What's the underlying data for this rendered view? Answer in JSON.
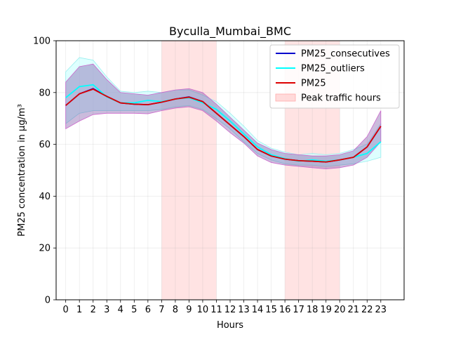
{
  "chart_data": {
    "type": "line",
    "title": "Byculla_Mumbai_BMC",
    "xlabel": "Hours",
    "ylabel": "PM25 concentration in µg/m³",
    "xlim": [
      -0.7,
      24.7
    ],
    "ylim": [
      0,
      100
    ],
    "xticks": [
      0,
      1,
      2,
      3,
      4,
      5,
      6,
      7,
      8,
      9,
      10,
      11,
      12,
      13,
      14,
      15,
      16,
      17,
      18,
      19,
      20,
      21,
      22,
      23
    ],
    "yticks": [
      0,
      20,
      40,
      60,
      80,
      100
    ],
    "grid": true,
    "legend_position": "top-right",
    "x": [
      0,
      1,
      2,
      3,
      4,
      5,
      6,
      7,
      8,
      9,
      10,
      11,
      12,
      13,
      14,
      15,
      16,
      17,
      18,
      19,
      20,
      21,
      22,
      23
    ],
    "series": [
      {
        "name": "PM25_consecutives",
        "color": "#0000cc",
        "values": [
          75,
          79.5,
          81.5,
          78.5,
          76,
          75.5,
          75.3,
          76.3,
          77.5,
          78.3,
          76.5,
          72,
          67.5,
          63,
          58,
          55.5,
          54.3,
          53.7,
          53.5,
          53.2,
          54,
          55,
          59,
          67
        ],
        "band_low": [
          66,
          69,
          71.5,
          72,
          72,
          72,
          71.8,
          73,
          74,
          74.5,
          73,
          69,
          64.5,
          60.5,
          55.5,
          53,
          52,
          51.5,
          51,
          50.5,
          51,
          52,
          55,
          61
        ],
        "band_high": [
          84,
          90,
          91,
          85,
          80,
          79.5,
          79,
          80,
          81,
          81.5,
          80,
          75.5,
          70.5,
          65.5,
          60.5,
          58,
          56.5,
          56,
          55.5,
          55.5,
          56,
          57.5,
          63,
          73
        ],
        "band_color": "#6a3d9a"
      },
      {
        "name": "PM25_outliers",
        "color": "#00ffff",
        "values": [
          78,
          82.3,
          83,
          78.3,
          76,
          76,
          77,
          76.5,
          77.5,
          78,
          76,
          73.5,
          69,
          64,
          59,
          56,
          54.5,
          53.5,
          54,
          53.5,
          54,
          55,
          56.5,
          61
        ],
        "band_low": [
          68,
          72,
          73,
          73,
          73,
          73,
          73,
          73.5,
          74.5,
          75,
          73.5,
          70,
          66,
          61,
          56.5,
          54,
          52.5,
          52,
          52,
          51.5,
          52,
          52.5,
          53.5,
          55
        ],
        "band_high": [
          88,
          93.5,
          92.5,
          86,
          80.5,
          80,
          80.5,
          80,
          81,
          81,
          79,
          76.5,
          72,
          67,
          61.5,
          58.5,
          57,
          56,
          56.5,
          56,
          56.5,
          58,
          60,
          68
        ],
        "band_color": "#ccffff"
      },
      {
        "name": "PM25",
        "color": "#dd0000",
        "values": [
          75,
          79.5,
          81.3,
          78.5,
          76,
          75.5,
          75.3,
          76.3,
          77.5,
          78.2,
          76.5,
          72,
          67.5,
          63,
          58,
          55.5,
          54.3,
          53.7,
          53.5,
          53.2,
          54,
          55,
          59,
          67
        ]
      }
    ],
    "shaded_regions": [
      {
        "name": "Peak traffic hours",
        "x": [
          7,
          11
        ],
        "color": "#ffcccc"
      },
      {
        "name": "Peak traffic hours",
        "x": [
          16,
          20
        ],
        "color": "#ffcccc"
      }
    ]
  }
}
